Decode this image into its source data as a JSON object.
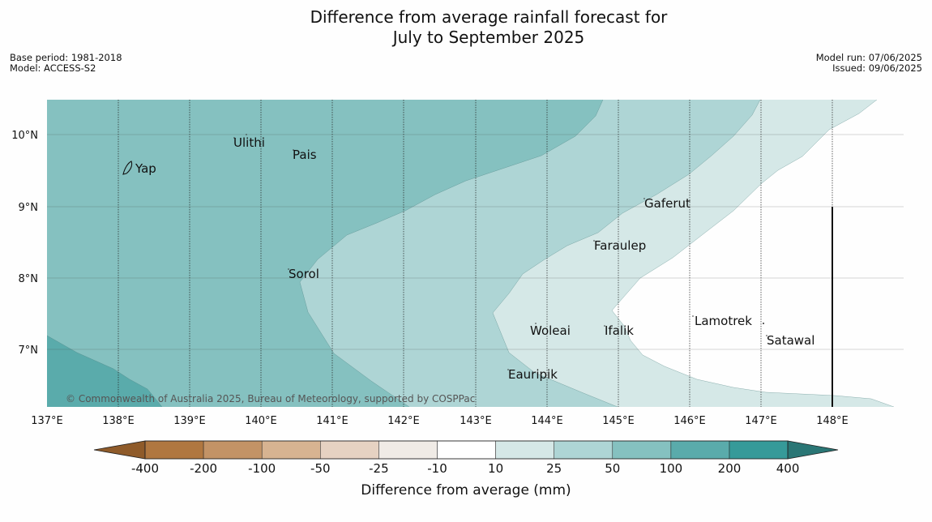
{
  "title_line1": "Difference from average rainfall forecast for",
  "title_line2": "July to September 2025",
  "meta": {
    "base_period": "Base period: 1981-2018",
    "model": "Model: ACCESS-S2",
    "model_run": "Model run: 07/06/2025",
    "issued": "Issued: 09/06/2025"
  },
  "copyright": "© Commonwealth of Australia 2025, Bureau of Meteorology, supported by COSPPac",
  "longitude_labels": [
    "137°E",
    "138°E",
    "139°E",
    "140°E",
    "141°E",
    "142°E",
    "143°E",
    "144°E",
    "145°E",
    "146°E",
    "147°E",
    "148°E"
  ],
  "latitude_labels": [
    "10°N",
    "9°N",
    "8°N",
    "7°N"
  ],
  "places": [
    "Ulithi",
    "Pais",
    "Yap",
    "Gaferut",
    "Faraulep",
    "Sorol",
    "Lamotrek",
    "Woleai",
    "Ifalik",
    "Satawal",
    "Eauripik"
  ],
  "colorbar": {
    "title": "Difference from average (mm)",
    "tick_labels": [
      "-400",
      "-200",
      "-100",
      "-50",
      "-25",
      "-10",
      "10",
      "25",
      "50",
      "100",
      "200",
      "400"
    ],
    "colors": [
      "#8f5b2a",
      "#b07740",
      "#c39366",
      "#d7b391",
      "#e6d2c2",
      "#f0ebe6",
      "#ffffff",
      "#d5e8e7",
      "#aed5d5",
      "#85c1c0",
      "#5aabab",
      "#369a99",
      "#2a7675"
    ]
  },
  "fill_colors": {
    "band_10_25": "#d5e8e7",
    "band_25_50": "#aed5d5",
    "band_50_100": "#85c1c0",
    "band_100_200": "#5aabab"
  }
}
